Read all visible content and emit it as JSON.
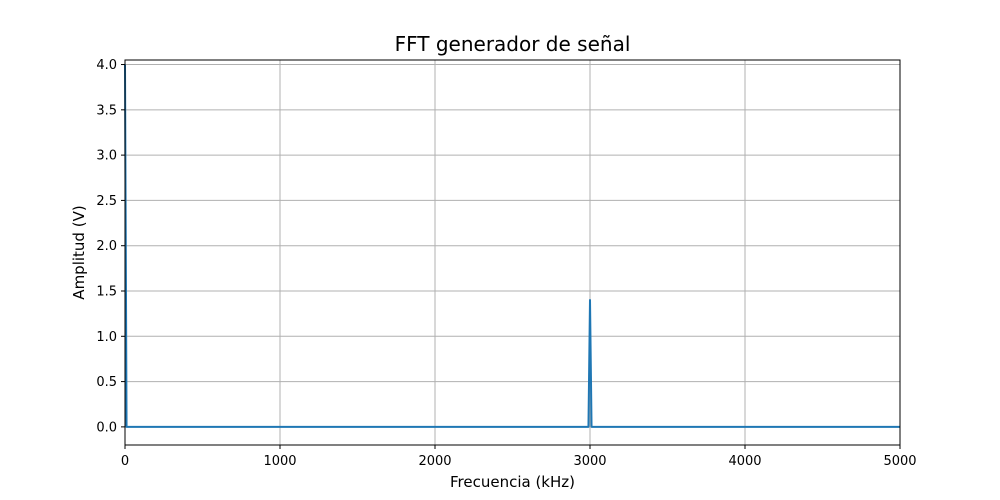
{
  "chart_data": {
    "type": "line",
    "title": "FFT generador de señal",
    "xlabel": "Frecuencia (kHz)",
    "ylabel": "Amplitud (V)",
    "xlim": [
      0,
      5000
    ],
    "ylim": [
      -0.2,
      4.05
    ],
    "xticks": [
      0,
      1000,
      2000,
      3000,
      4000,
      5000
    ],
    "xtick_labels": [
      "0",
      "1000",
      "2000",
      "3000",
      "4000",
      "5000"
    ],
    "yticks": [
      0.0,
      0.5,
      1.0,
      1.5,
      2.0,
      2.5,
      3.0,
      3.5,
      4.0
    ],
    "ytick_labels": [
      "0.0",
      "0.5",
      "1.0",
      "1.5",
      "2.0",
      "2.5",
      "3.0",
      "3.5",
      "4.0"
    ],
    "grid": true,
    "series": [
      {
        "color": "#1f77b4",
        "x": [
          0,
          10,
          20,
          2980,
          2990,
          3000,
          3010,
          3020,
          5000
        ],
        "y": [
          4.0,
          0.0,
          0.0,
          0.0,
          0.0,
          1.4,
          0.0,
          0.0,
          0.0
        ]
      }
    ]
  }
}
